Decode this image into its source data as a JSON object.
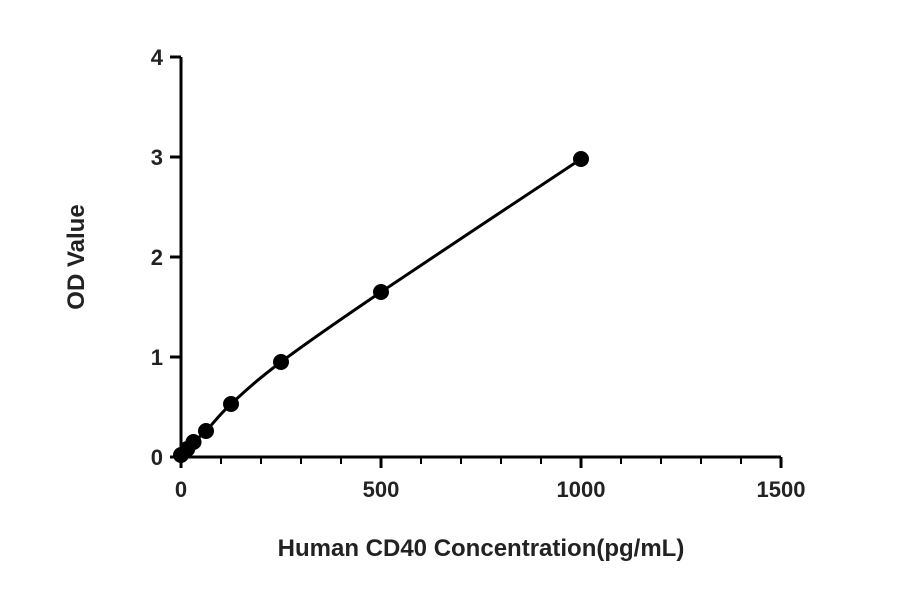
{
  "chart_data": {
    "type": "scatter",
    "title": "",
    "xlabel": "Human CD40 Concentration(pg/mL)",
    "ylabel": "OD Value",
    "xlim": [
      0,
      1500
    ],
    "ylim": [
      0,
      4
    ],
    "x_ticks": [
      0,
      500,
      1000,
      1500
    ],
    "y_ticks": [
      0,
      1,
      2,
      3,
      4
    ],
    "x_tick_labels": [
      "0",
      "500",
      "1000",
      "1500"
    ],
    "y_tick_labels": [
      "0",
      "1",
      "2",
      "3",
      "4"
    ],
    "grid": false,
    "legend": "none",
    "series": [
      {
        "x": [
          0,
          15.6,
          31.25,
          62.5,
          125,
          250,
          500,
          1000
        ],
        "y": [
          0.02,
          0.08,
          0.15,
          0.26,
          0.53,
          0.95,
          1.65,
          2.98
        ],
        "marker": "circle",
        "fit_line": true
      }
    ],
    "colors": {
      "points": "#000000",
      "line": "#000000",
      "axes": "#000000"
    }
  }
}
